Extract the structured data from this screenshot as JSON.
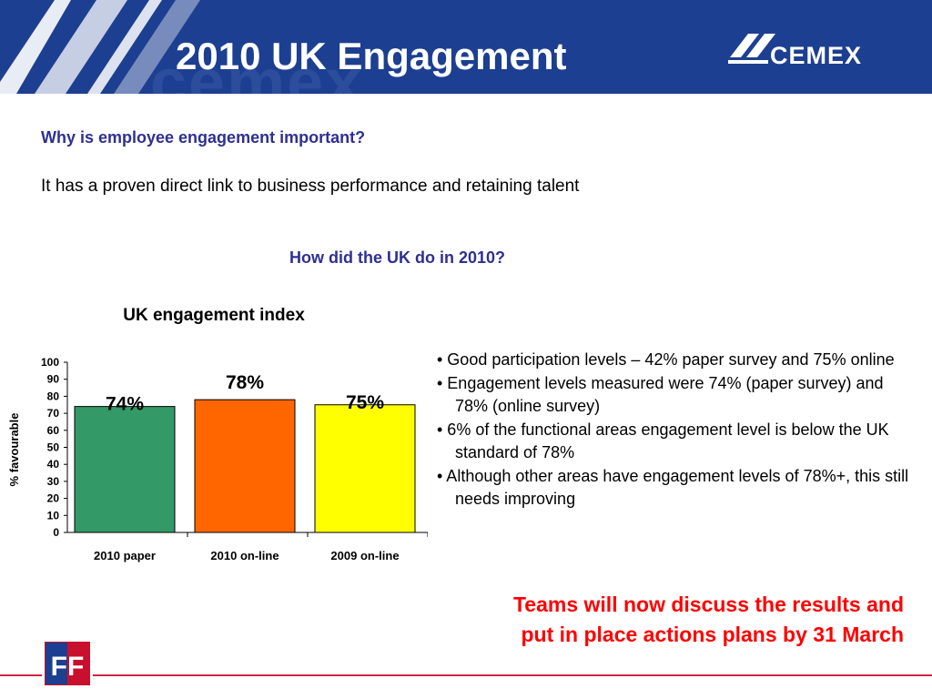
{
  "header": {
    "title": "2010 UK Engagement",
    "brand_ghost": "cemex",
    "logo_text": "CEMEX",
    "bg_color": "#1d3f91"
  },
  "intro": {
    "question": "Why is employee engagement important?",
    "answer": "It has a proven direct link to business performance and retaining talent",
    "question2": "How did the UK do in 2010?"
  },
  "chart_data": {
    "type": "bar",
    "title": "UK engagement index",
    "ylabel": "% favourable",
    "xlabel": "",
    "ylim": [
      0,
      100
    ],
    "yticks": [
      0,
      10,
      20,
      30,
      40,
      50,
      60,
      70,
      80,
      90,
      100
    ],
    "categories": [
      "2010 paper",
      "2010 on-line",
      "2009 on-line"
    ],
    "values": [
      74,
      78,
      75
    ],
    "data_labels": [
      "74%",
      "78%",
      "75%"
    ],
    "colors": [
      "#339966",
      "#ff6600",
      "#ffff00"
    ],
    "grid": false,
    "legend": "none"
  },
  "bullets": [
    "• Good participation levels – 42% paper survey and 75% online",
    "• Engagement levels measured were 74% (paper survey) and 78% (online survey)",
    "•  6% of the functional areas engagement level is below the UK standard of 78%",
    "•  Although other areas have engagement levels of 78%+, this still needs improving"
  ],
  "callout": {
    "line1": "Teams will now discuss the results and",
    "line2": "put in place actions plans by 31 March"
  },
  "footer": {
    "logo_text": "FF",
    "accent_color": "#c8102e"
  }
}
